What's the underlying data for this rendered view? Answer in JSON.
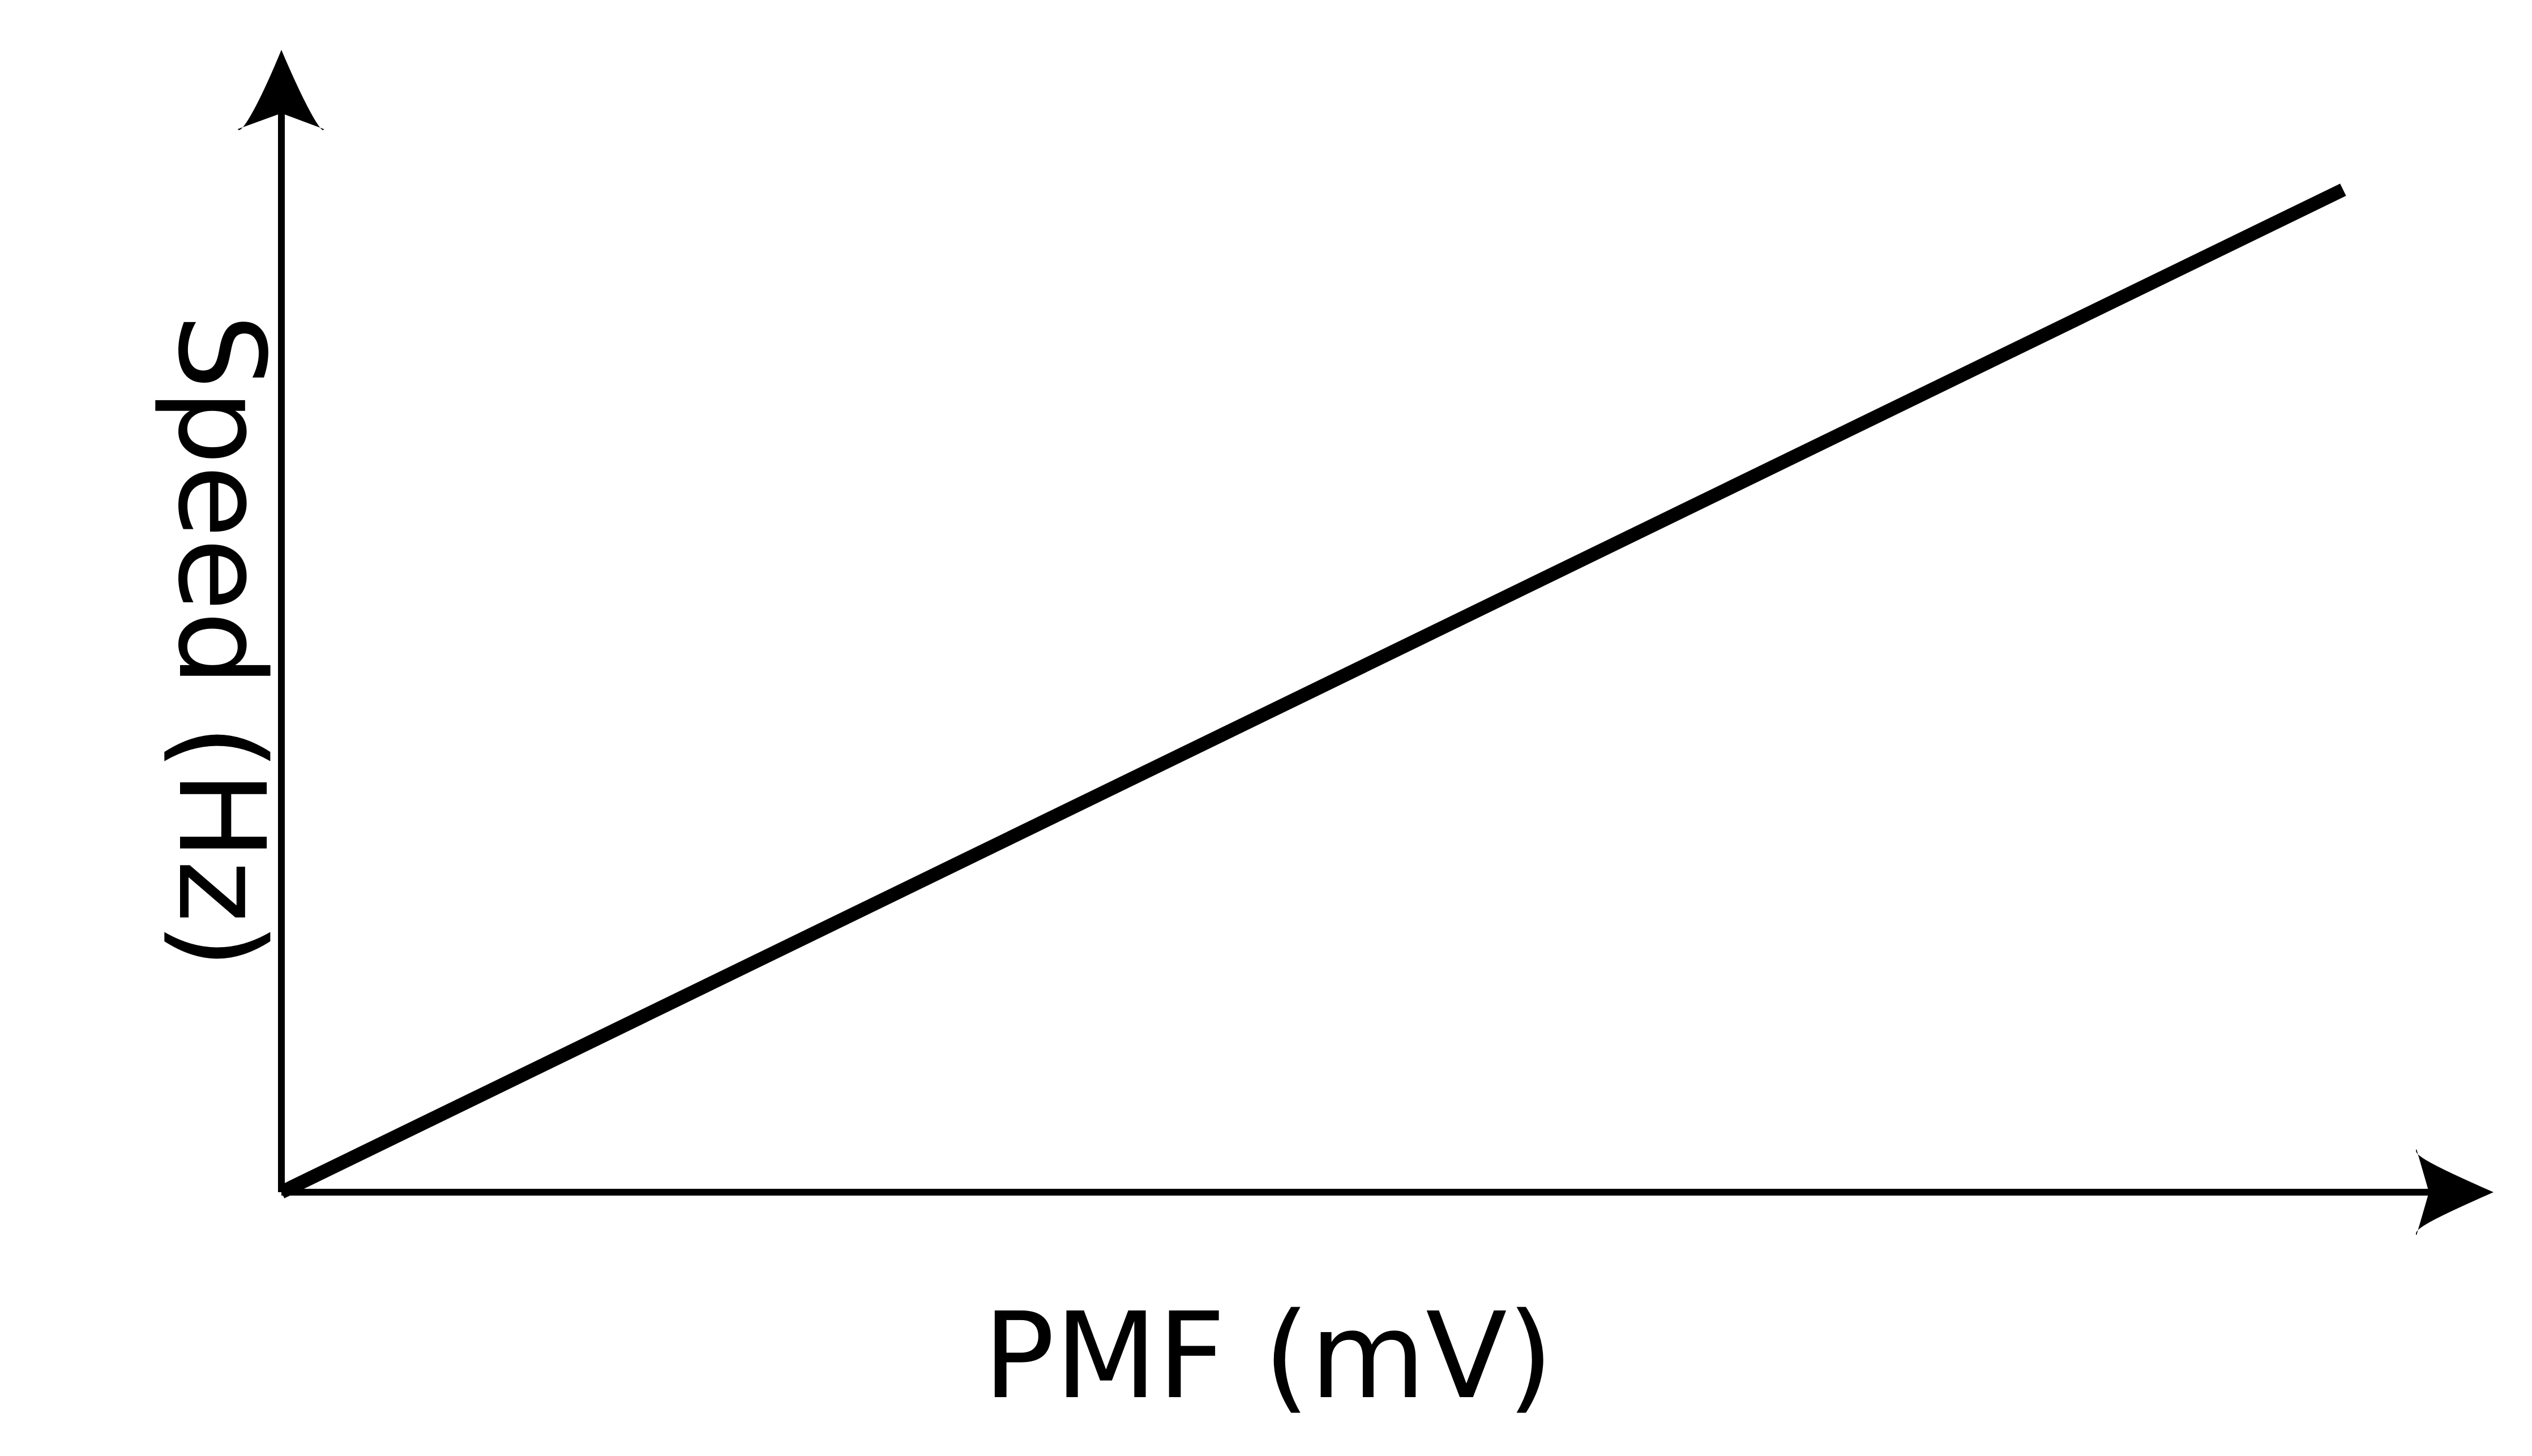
{
  "chart_data": {
    "type": "line",
    "title": "",
    "xlabel": "PMF (mV)",
    "ylabel": "Speed (Hz)",
    "grid": false,
    "legend": "none",
    "x_ticks": [],
    "y_ticks": [],
    "xlim": [
      0,
      1
    ],
    "ylim": [
      0,
      1
    ],
    "series": [
      {
        "x": [
          0,
          0.95
        ],
        "y": [
          0,
          0.91
        ]
      }
    ],
    "colors": {
      "axis": "#000000",
      "series": "#000000",
      "background": "#ffffff"
    }
  }
}
